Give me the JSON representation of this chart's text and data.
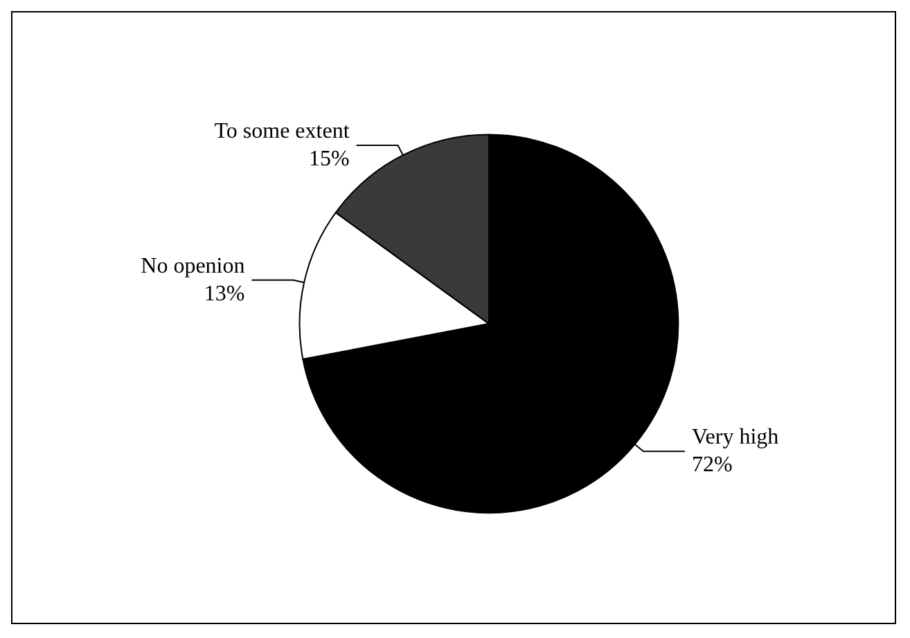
{
  "chart_data": {
    "type": "pie",
    "categories": [
      "Very high",
      "No openion",
      "To some extent"
    ],
    "values": [
      72,
      13,
      15
    ],
    "value_labels": [
      "72%",
      "13%",
      "15%"
    ],
    "colors": [
      "#000000",
      "#ffffff",
      "#3a3a3a"
    ],
    "legend": false
  }
}
